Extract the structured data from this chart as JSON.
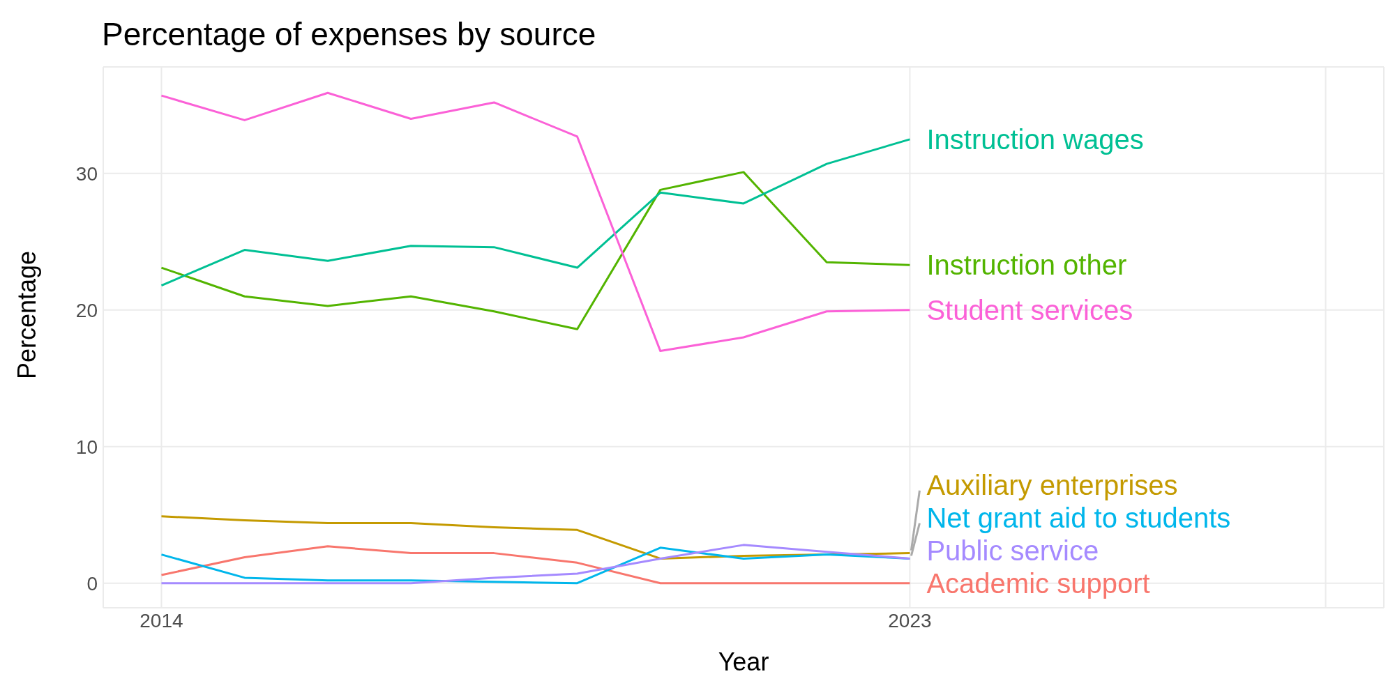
{
  "chart_data": {
    "type": "line",
    "title": "Percentage of expenses by source",
    "xlabel": "Year",
    "ylabel": "Percentage",
    "x": [
      2014,
      2015,
      2016,
      2017,
      2018,
      2019,
      2020,
      2021,
      2022,
      2023
    ],
    "xlim": [
      2013.3,
      2028.7
    ],
    "xticks": [
      2014,
      2023,
      {
        "value": 2028,
        "label": null
      }
    ],
    "ylim": [
      -1.8,
      37.8
    ],
    "yticks": [
      0,
      10,
      20,
      30
    ],
    "grid": true,
    "legend": false,
    "marker": "none",
    "line_style": "solid",
    "series": [
      {
        "name": "Academic support",
        "color": "#f8766d",
        "values": [
          0.6,
          1.9,
          2.7,
          2.2,
          2.2,
          1.5,
          0,
          0,
          0,
          0
        ]
      },
      {
        "name": "Auxiliary enterprises",
        "color": "#c49a00",
        "values": [
          4.9,
          4.6,
          4.4,
          4.4,
          4.1,
          3.9,
          1.8,
          2.0,
          2.1,
          2.2
        ]
      },
      {
        "name": "Instruction other",
        "color": "#53b400",
        "values": [
          23.1,
          21.0,
          20.3,
          21.0,
          19.9,
          18.6,
          28.8,
          30.1,
          23.5,
          23.3
        ]
      },
      {
        "name": "Instruction wages",
        "color": "#00c094",
        "values": [
          21.8,
          24.4,
          23.6,
          24.7,
          24.6,
          23.1,
          28.6,
          27.8,
          30.7,
          32.5
        ]
      },
      {
        "name": "Net grant aid to students",
        "color": "#00b6eb",
        "values": [
          2.1,
          0.4,
          0.2,
          0.2,
          0.1,
          0,
          2.6,
          1.8,
          2.1,
          1.8
        ]
      },
      {
        "name": "Public service",
        "color": "#a58aff",
        "values": [
          0,
          0,
          0,
          0,
          0.4,
          0.7,
          1.8,
          2.8,
          2.3,
          1.8
        ]
      },
      {
        "name": "Student services",
        "color": "#fb61d7",
        "values": [
          35.7,
          33.9,
          35.9,
          34.0,
          35.2,
          32.7,
          17.0,
          18.0,
          19.9,
          20.0
        ]
      }
    ]
  }
}
